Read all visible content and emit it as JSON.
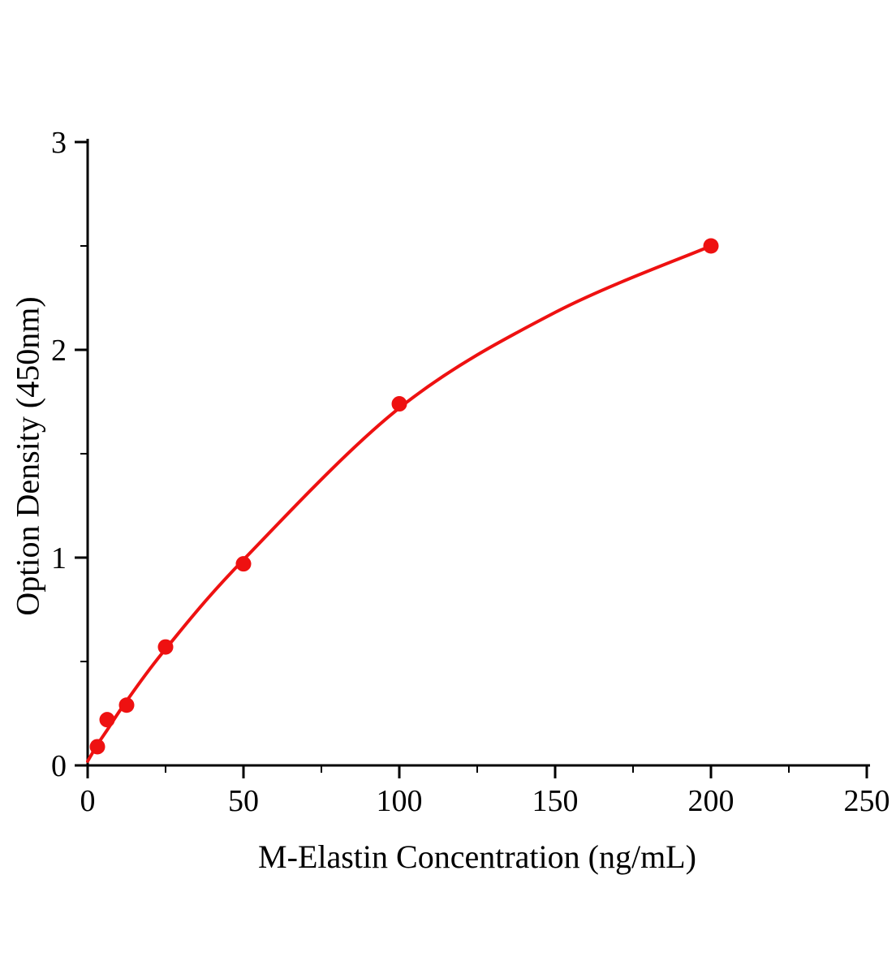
{
  "figure": {
    "background": "#ffffff",
    "accent_red": "#ee1111",
    "axis_color": "#000000"
  },
  "chart_data": {
    "type": "scatter",
    "title": "",
    "xlabel": "M-Elastin Concentration (ng/mL)",
    "ylabel": "Option Density (450nm)",
    "xlim": [
      0,
      250
    ],
    "ylim": [
      0,
      3
    ],
    "xticks": [
      0,
      50,
      100,
      150,
      200,
      250
    ],
    "yticks": [
      0,
      1,
      2,
      3
    ],
    "x_minor_step": 25,
    "y_minor_step": 0.5,
    "grid": false,
    "legend_position": "none",
    "series": [
      {
        "name": "M-Elastin standard points",
        "type": "scatter",
        "color": "#ee1111",
        "marker": "circle",
        "marker_radius": 9.5,
        "points": [
          {
            "x": 3.125,
            "y": 0.09
          },
          {
            "x": 6.25,
            "y": 0.22
          },
          {
            "x": 12.5,
            "y": 0.29
          },
          {
            "x": 25,
            "y": 0.57
          },
          {
            "x": 50,
            "y": 0.97
          },
          {
            "x": 100,
            "y": 1.74
          },
          {
            "x": 200,
            "y": 2.5
          }
        ]
      },
      {
        "name": "fitted standard curve",
        "type": "line",
        "color": "#ee1111",
        "stroke_width": 4,
        "points": [
          {
            "x": 0,
            "y": 0.02
          },
          {
            "x": 3.125,
            "y": 0.1
          },
          {
            "x": 6.25,
            "y": 0.17
          },
          {
            "x": 12.5,
            "y": 0.31
          },
          {
            "x": 25,
            "y": 0.56
          },
          {
            "x": 50,
            "y": 0.99
          },
          {
            "x": 100,
            "y": 1.72
          },
          {
            "x": 150,
            "y": 2.18
          },
          {
            "x": 200,
            "y": 2.5
          }
        ]
      }
    ]
  }
}
